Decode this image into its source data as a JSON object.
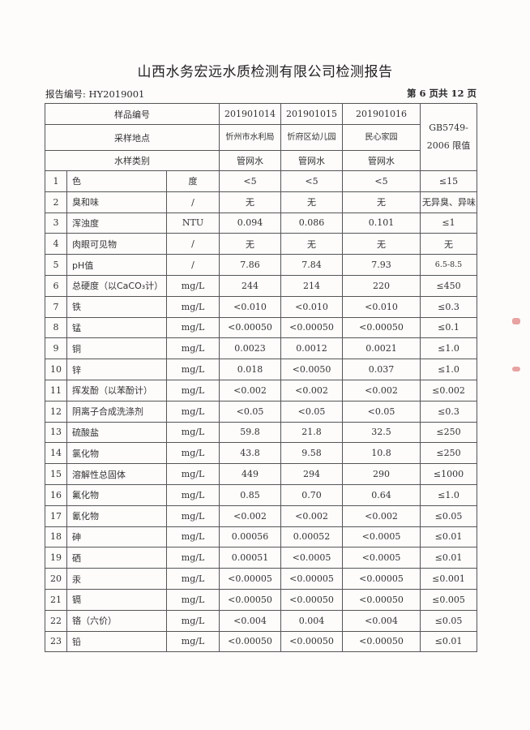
{
  "title": "山西水务宏远水质检测有限公司检测报告",
  "report_no": "报告编号: HY2019001",
  "page_no": "第 6 页共 12 页",
  "header": {
    "sample_no_label": "样品编号",
    "location_label": "采样地点",
    "type_label": "水样类别",
    "limit_label": "GB5749-2006 限值",
    "samples": [
      {
        "no": "201901014",
        "location": "忻州市水利局",
        "type": "管网水"
      },
      {
        "no": "201901015",
        "location": "忻府区幼儿园",
        "type": "管网水"
      },
      {
        "no": "201901016",
        "location": "民心家园",
        "type": "管网水"
      }
    ]
  },
  "rows": [
    {
      "n": "1",
      "item": "色",
      "unit": "度",
      "v": [
        "<5",
        "<5",
        "<5"
      ],
      "limit": "≤15"
    },
    {
      "n": "2",
      "item": "臭和味",
      "unit": "/",
      "v": [
        "无",
        "无",
        "无"
      ],
      "limit": "无异臭、异味"
    },
    {
      "n": "3",
      "item": "浑浊度",
      "unit": "NTU",
      "v": [
        "0.094",
        "0.086",
        "0.101"
      ],
      "limit": "≤1"
    },
    {
      "n": "4",
      "item": "肉眼可见物",
      "unit": "/",
      "v": [
        "无",
        "无",
        "无"
      ],
      "limit": "无"
    },
    {
      "n": "5",
      "item": "pH值",
      "unit": "/",
      "v": [
        "7.86",
        "7.84",
        "7.93"
      ],
      "limit": "6.5-8.5"
    },
    {
      "n": "6",
      "item": "总硬度（以CaCO₃计）",
      "unit": "mg/L",
      "v": [
        "244",
        "214",
        "220"
      ],
      "limit": "≤450"
    },
    {
      "n": "7",
      "item": "铁",
      "unit": "mg/L",
      "v": [
        "<0.010",
        "<0.010",
        "<0.010"
      ],
      "limit": "≤0.3"
    },
    {
      "n": "8",
      "item": "锰",
      "unit": "mg/L",
      "v": [
        "<0.00050",
        "<0.00050",
        "<0.00050"
      ],
      "limit": "≤0.1"
    },
    {
      "n": "9",
      "item": "铜",
      "unit": "mg/L",
      "v": [
        "0.0023",
        "0.0012",
        "0.0021"
      ],
      "limit": "≤1.0"
    },
    {
      "n": "10",
      "item": "锌",
      "unit": "mg/L",
      "v": [
        "0.018",
        "<0.0050",
        "0.037"
      ],
      "limit": "≤1.0"
    },
    {
      "n": "11",
      "item": "挥发酚（以苯酚计）",
      "unit": "mg/L",
      "v": [
        "<0.002",
        "<0.002",
        "<0.002"
      ],
      "limit": "≤0.002"
    },
    {
      "n": "12",
      "item": "阴离子合成洗涤剂",
      "unit": "mg/L",
      "v": [
        "<0.05",
        "<0.05",
        "<0.05"
      ],
      "limit": "≤0.3"
    },
    {
      "n": "13",
      "item": "硫酸盐",
      "unit": "mg/L",
      "v": [
        "59.8",
        "21.8",
        "32.5"
      ],
      "limit": "≤250"
    },
    {
      "n": "14",
      "item": "氯化物",
      "unit": "mg/L",
      "v": [
        "43.8",
        "9.58",
        "10.8"
      ],
      "limit": "≤250"
    },
    {
      "n": "15",
      "item": "溶解性总固体",
      "unit": "mg/L",
      "v": [
        "449",
        "294",
        "290"
      ],
      "limit": "≤1000"
    },
    {
      "n": "16",
      "item": "氟化物",
      "unit": "mg/L",
      "v": [
        "0.85",
        "0.70",
        "0.64"
      ],
      "limit": "≤1.0"
    },
    {
      "n": "17",
      "item": "氰化物",
      "unit": "mg/L",
      "v": [
        "<0.002",
        "<0.002",
        "<0.002"
      ],
      "limit": "≤0.05"
    },
    {
      "n": "18",
      "item": "砷",
      "unit": "mg/L",
      "v": [
        "0.00056",
        "0.00052",
        "<0.0005"
      ],
      "limit": "≤0.01"
    },
    {
      "n": "19",
      "item": "硒",
      "unit": "mg/L",
      "v": [
        "0.00051",
        "<0.0005",
        "<0.0005"
      ],
      "limit": "≤0.01"
    },
    {
      "n": "20",
      "item": "汞",
      "unit": "mg/L",
      "v": [
        "<0.00005",
        "<0.00005",
        "<0.00005"
      ],
      "limit": "≤0.001"
    },
    {
      "n": "21",
      "item": "镉",
      "unit": "mg/L",
      "v": [
        "<0.00050",
        "<0.00050",
        "<0.00050"
      ],
      "limit": "≤0.005"
    },
    {
      "n": "22",
      "item": "铬（六价）",
      "unit": "mg/L",
      "v": [
        "<0.004",
        "0.004",
        "<0.004"
      ],
      "limit": "≤0.05"
    },
    {
      "n": "23",
      "item": "铅",
      "unit": "mg/L",
      "v": [
        "<0.00050",
        "<0.00050",
        "<0.00050"
      ],
      "limit": "≤0.01"
    }
  ]
}
